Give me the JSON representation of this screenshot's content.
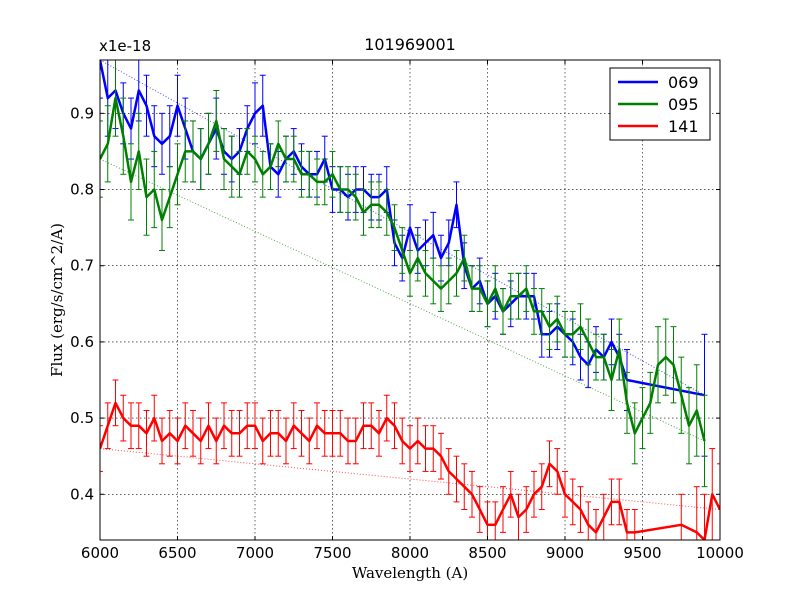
{
  "chart_data": {
    "type": "line",
    "title": "101969001",
    "xlabel": "Wavelength (A)",
    "ylabel": "Flux (erg/s/cm^2/A)",
    "y_multiplier_label": "x1e-18",
    "xlim": [
      6000,
      10000
    ],
    "ylim": [
      0.34,
      0.97
    ],
    "grid": true,
    "legend_position": "top-right",
    "x_ticks": [
      6000,
      6500,
      7000,
      7500,
      8000,
      8500,
      9000,
      9500,
      10000
    ],
    "x_tick_labels": [
      "6000",
      "6500",
      "7000",
      "7500",
      "8000",
      "8500",
      "9000",
      "9500",
      "10000"
    ],
    "y_ticks": [
      0.4,
      0.5,
      0.6,
      0.7,
      0.8,
      0.9
    ],
    "y_tick_labels": [
      "0.4",
      "0.5",
      "0.6",
      "0.7",
      "0.8",
      "0.9"
    ],
    "series": [
      {
        "name": "069",
        "color": "#0000ff",
        "x": [
          6000,
          6050,
          6100,
          6150,
          6200,
          6250,
          6300,
          6350,
          6400,
          6450,
          6500,
          6550,
          6600,
          6650,
          6700,
          6750,
          6800,
          6850,
          6900,
          6950,
          7000,
          7050,
          7100,
          7150,
          7200,
          7250,
          7300,
          7350,
          7400,
          7450,
          7500,
          7550,
          7600,
          7650,
          7700,
          7750,
          7800,
          7850,
          7900,
          7950,
          8000,
          8050,
          8100,
          8150,
          8200,
          8250,
          8300,
          8350,
          8400,
          8450,
          8500,
          8550,
          8600,
          8650,
          8700,
          8750,
          8800,
          8850,
          8900,
          8950,
          9000,
          9050,
          9100,
          9150,
          9200,
          9250,
          9300,
          9350,
          9400,
          9900
        ],
        "y": [
          0.97,
          0.92,
          0.93,
          0.9,
          0.88,
          0.93,
          0.91,
          0.87,
          0.86,
          0.87,
          0.91,
          0.88,
          0.85,
          0.84,
          0.86,
          0.88,
          0.85,
          0.84,
          0.85,
          0.88,
          0.9,
          0.91,
          0.83,
          0.82,
          0.84,
          0.85,
          0.83,
          0.82,
          0.82,
          0.84,
          0.8,
          0.8,
          0.79,
          0.8,
          0.8,
          0.79,
          0.79,
          0.8,
          0.73,
          0.71,
          0.75,
          0.72,
          0.73,
          0.74,
          0.71,
          0.73,
          0.78,
          0.7,
          0.67,
          0.68,
          0.65,
          0.66,
          0.64,
          0.65,
          0.66,
          0.66,
          0.66,
          0.61,
          0.61,
          0.62,
          0.61,
          0.6,
          0.58,
          0.57,
          0.59,
          0.58,
          0.6,
          0.58,
          0.55,
          0.53
        ],
        "err": [
          0.05,
          0.05,
          0.05,
          0.04,
          0.04,
          0.04,
          0.04,
          0.04,
          0.04,
          0.04,
          0.04,
          0.04,
          0.04,
          0.04,
          0.04,
          0.04,
          0.03,
          0.03,
          0.03,
          0.03,
          0.04,
          0.04,
          0.03,
          0.03,
          0.03,
          0.03,
          0.03,
          0.03,
          0.03,
          0.03,
          0.03,
          0.03,
          0.03,
          0.03,
          0.03,
          0.03,
          0.03,
          0.03,
          0.03,
          0.03,
          0.03,
          0.03,
          0.03,
          0.03,
          0.03,
          0.03,
          0.03,
          0.03,
          0.03,
          0.03,
          0.03,
          0.03,
          0.03,
          0.03,
          0.03,
          0.03,
          0.03,
          0.03,
          0.03,
          0.03,
          0.03,
          0.03,
          0.03,
          0.03,
          0.03,
          0.03,
          0.03,
          0.03,
          0.04,
          0.08
        ]
      },
      {
        "name": "095",
        "color": "#008000",
        "x": [
          6000,
          6050,
          6100,
          6150,
          6200,
          6250,
          6300,
          6350,
          6400,
          6450,
          6500,
          6550,
          6600,
          6650,
          6700,
          6750,
          6800,
          6850,
          6900,
          6950,
          7000,
          7050,
          7100,
          7150,
          7200,
          7250,
          7300,
          7350,
          7400,
          7450,
          7500,
          7550,
          7600,
          7650,
          7700,
          7750,
          7800,
          7850,
          7900,
          7950,
          8000,
          8050,
          8100,
          8150,
          8200,
          8250,
          8300,
          8350,
          8400,
          8450,
          8500,
          8550,
          8600,
          8650,
          8700,
          8750,
          8800,
          8850,
          8900,
          8950,
          9000,
          9050,
          9100,
          9150,
          9200,
          9250,
          9300,
          9350,
          9400,
          9450,
          9500,
          9550,
          9600,
          9650,
          9700,
          9750,
          9800,
          9850,
          9900
        ],
        "y": [
          0.84,
          0.86,
          0.92,
          0.87,
          0.81,
          0.85,
          0.79,
          0.8,
          0.76,
          0.79,
          0.82,
          0.85,
          0.85,
          0.84,
          0.86,
          0.89,
          0.84,
          0.83,
          0.82,
          0.85,
          0.84,
          0.82,
          0.83,
          0.86,
          0.84,
          0.84,
          0.82,
          0.82,
          0.81,
          0.81,
          0.82,
          0.8,
          0.8,
          0.79,
          0.77,
          0.78,
          0.78,
          0.77,
          0.75,
          0.72,
          0.69,
          0.71,
          0.69,
          0.68,
          0.67,
          0.68,
          0.69,
          0.71,
          0.67,
          0.67,
          0.65,
          0.67,
          0.64,
          0.66,
          0.66,
          0.67,
          0.64,
          0.64,
          0.62,
          0.63,
          0.61,
          0.61,
          0.62,
          0.6,
          0.58,
          0.58,
          0.55,
          0.59,
          0.52,
          0.48,
          0.5,
          0.52,
          0.57,
          0.58,
          0.57,
          0.53,
          0.49,
          0.51,
          0.47
        ],
        "err": [
          0.05,
          0.05,
          0.05,
          0.05,
          0.05,
          0.05,
          0.05,
          0.05,
          0.04,
          0.04,
          0.04,
          0.04,
          0.04,
          0.04,
          0.04,
          0.04,
          0.04,
          0.04,
          0.03,
          0.03,
          0.03,
          0.03,
          0.03,
          0.03,
          0.03,
          0.03,
          0.03,
          0.03,
          0.03,
          0.03,
          0.03,
          0.03,
          0.03,
          0.03,
          0.03,
          0.03,
          0.03,
          0.03,
          0.03,
          0.03,
          0.03,
          0.03,
          0.03,
          0.03,
          0.03,
          0.03,
          0.03,
          0.03,
          0.03,
          0.03,
          0.03,
          0.03,
          0.03,
          0.03,
          0.03,
          0.03,
          0.03,
          0.03,
          0.03,
          0.03,
          0.03,
          0.03,
          0.03,
          0.03,
          0.03,
          0.03,
          0.04,
          0.04,
          0.04,
          0.04,
          0.04,
          0.04,
          0.05,
          0.05,
          0.05,
          0.05,
          0.05,
          0.06,
          0.06
        ]
      },
      {
        "name": "141",
        "color": "#ff0000",
        "x": [
          6000,
          6050,
          6100,
          6150,
          6200,
          6250,
          6300,
          6350,
          6400,
          6450,
          6500,
          6550,
          6600,
          6650,
          6700,
          6750,
          6800,
          6850,
          6900,
          6950,
          7000,
          7050,
          7100,
          7150,
          7200,
          7250,
          7300,
          7350,
          7400,
          7450,
          7500,
          7550,
          7600,
          7650,
          7700,
          7750,
          7800,
          7850,
          7900,
          7950,
          8000,
          8050,
          8100,
          8150,
          8200,
          8250,
          8300,
          8350,
          8400,
          8450,
          8500,
          8550,
          8600,
          8650,
          8700,
          8750,
          8800,
          8850,
          8900,
          8950,
          9000,
          9050,
          9100,
          9150,
          9200,
          9250,
          9300,
          9350,
          9400,
          9450,
          9750,
          9850,
          9900,
          9950,
          10000
        ],
        "y": [
          0.46,
          0.49,
          0.52,
          0.5,
          0.49,
          0.49,
          0.48,
          0.5,
          0.47,
          0.48,
          0.47,
          0.49,
          0.48,
          0.47,
          0.49,
          0.47,
          0.49,
          0.48,
          0.48,
          0.49,
          0.49,
          0.47,
          0.48,
          0.48,
          0.47,
          0.49,
          0.48,
          0.47,
          0.49,
          0.48,
          0.48,
          0.48,
          0.47,
          0.47,
          0.49,
          0.49,
          0.48,
          0.5,
          0.49,
          0.47,
          0.46,
          0.47,
          0.46,
          0.46,
          0.45,
          0.43,
          0.42,
          0.41,
          0.4,
          0.38,
          0.36,
          0.36,
          0.38,
          0.4,
          0.37,
          0.38,
          0.4,
          0.41,
          0.44,
          0.43,
          0.4,
          0.39,
          0.38,
          0.36,
          0.35,
          0.37,
          0.39,
          0.39,
          0.35,
          0.35,
          0.36,
          0.35,
          0.34,
          0.4,
          0.38
        ],
        "err": [
          0.03,
          0.03,
          0.03,
          0.03,
          0.03,
          0.03,
          0.03,
          0.03,
          0.03,
          0.03,
          0.03,
          0.03,
          0.03,
          0.03,
          0.03,
          0.03,
          0.03,
          0.03,
          0.03,
          0.03,
          0.03,
          0.03,
          0.03,
          0.03,
          0.03,
          0.03,
          0.03,
          0.03,
          0.03,
          0.03,
          0.03,
          0.03,
          0.03,
          0.03,
          0.03,
          0.03,
          0.03,
          0.03,
          0.03,
          0.03,
          0.03,
          0.03,
          0.03,
          0.03,
          0.03,
          0.03,
          0.03,
          0.03,
          0.03,
          0.03,
          0.03,
          0.03,
          0.03,
          0.03,
          0.03,
          0.03,
          0.03,
          0.03,
          0.03,
          0.03,
          0.03,
          0.03,
          0.03,
          0.03,
          0.03,
          0.03,
          0.03,
          0.03,
          0.03,
          0.03,
          0.04,
          0.06,
          0.06,
          0.06,
          0.06
        ]
      }
    ]
  }
}
